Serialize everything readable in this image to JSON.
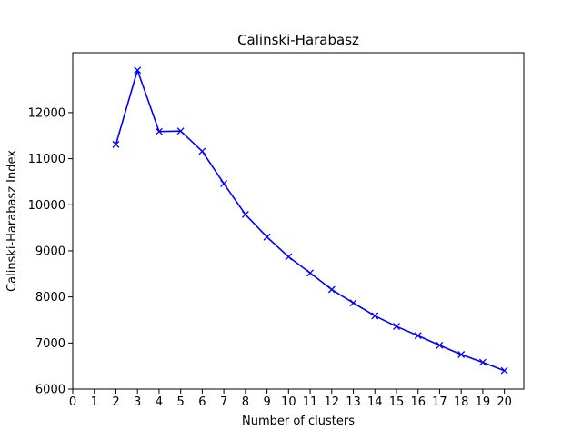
{
  "chart_data": {
    "type": "line",
    "title": "Calinski-Harabasz",
    "xlabel": "Number of clusters",
    "ylabel": "Calinski-Harabasz Index",
    "xlim": [
      0,
      20.9
    ],
    "ylim": [
      6000,
      13300
    ],
    "xticks": [
      0,
      1,
      2,
      3,
      4,
      5,
      6,
      7,
      8,
      9,
      10,
      11,
      12,
      13,
      14,
      15,
      16,
      17,
      18,
      19,
      20
    ],
    "yticks": [
      6000,
      7000,
      8000,
      9000,
      10000,
      11000,
      12000
    ],
    "grid": false,
    "legend": "none",
    "series": [
      {
        "color": "#0000ff",
        "marker": "x",
        "x": [
          2,
          3,
          4,
          5,
          6,
          7,
          8,
          9,
          10,
          11,
          12,
          13,
          14,
          15,
          16,
          17,
          18,
          19,
          20
        ],
        "values": [
          11310,
          12920,
          11590,
          11600,
          11160,
          10460,
          9790,
          9300,
          8870,
          8520,
          8160,
          7870,
          7590,
          7360,
          7160,
          6950,
          6750,
          6580,
          6400
        ]
      }
    ]
  }
}
